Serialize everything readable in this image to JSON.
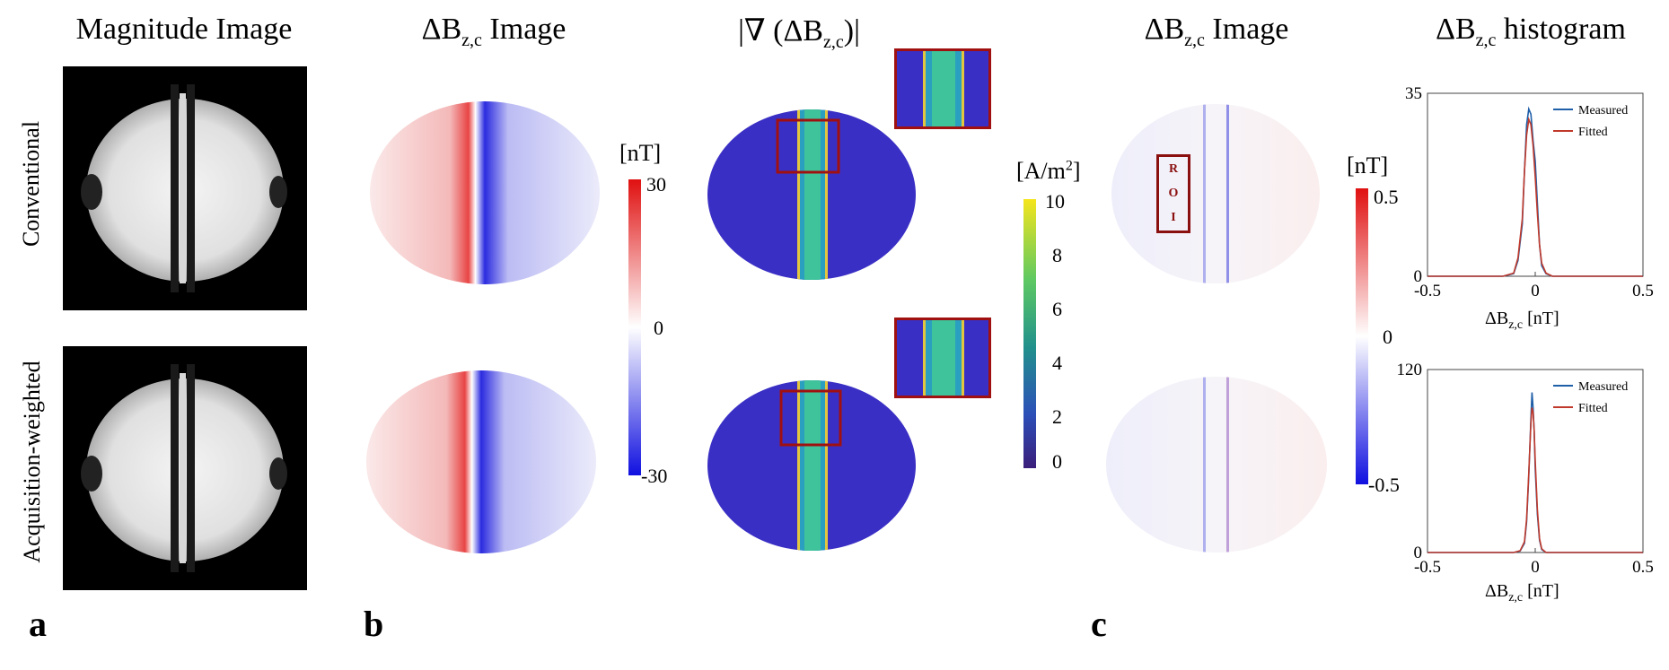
{
  "titles": {
    "magnitude": "Magnitude Image",
    "dbz1_prefix": "ΔB",
    "dbz1_sub": "z,c",
    "dbz1_suffix": " Image",
    "grad_prefix": "|∇ (ΔB",
    "grad_sub": "z,c",
    "grad_suffix": ")|",
    "dbz2_prefix": "ΔB",
    "dbz2_sub": "z,c",
    "dbz2_suffix": " Image",
    "hist_prefix": "ΔB",
    "hist_sub": "z,c",
    "hist_suffix": "  histogram"
  },
  "row_labels": [
    "Conventional",
    "Acquisition-weighted"
  ],
  "panel_letters": [
    "a",
    "b",
    "c"
  ],
  "colorbar_b": {
    "unit": "[nT]",
    "ticks": [
      "30",
      "0",
      "-30"
    ]
  },
  "colorbar_grad": {
    "unit_prefix": "[A/m",
    "unit_sup": "2",
    "unit_suffix": "]",
    "ticks": [
      "10",
      "8",
      "6",
      "4",
      "2",
      "0"
    ]
  },
  "colorbar_c": {
    "unit": "[nT]",
    "ticks": [
      "0.5",
      "0",
      "-0.5"
    ]
  },
  "roi_letters": [
    "R",
    "O",
    "I"
  ],
  "chart_data": [
    {
      "type": "line",
      "xlabel_prefix": "ΔB",
      "xlabel_sub": "z,c",
      "xlabel_suffix": " [nT]",
      "xlim": [
        -0.5,
        0.5
      ],
      "ylim": [
        0,
        35
      ],
      "xticks": [
        "-0.5",
        "0",
        "0.5"
      ],
      "yticks": [
        "35",
        "0"
      ],
      "series": [
        {
          "name": "Measured",
          "color": "#1f5fa8",
          "x": [
            -0.5,
            -0.15,
            -0.1,
            -0.08,
            -0.06,
            -0.05,
            -0.04,
            -0.03,
            -0.02,
            -0.01,
            0.0,
            0.01,
            0.02,
            0.03,
            0.05,
            0.08,
            0.5
          ],
          "y": [
            0,
            0,
            0.5,
            3,
            10,
            20,
            29,
            32,
            31,
            26,
            22,
            14,
            6,
            2,
            0.5,
            0,
            0
          ]
        },
        {
          "name": "Fitted",
          "color": "#c0392b",
          "x": [
            -0.5,
            -0.15,
            -0.1,
            -0.08,
            -0.06,
            -0.05,
            -0.04,
            -0.03,
            -0.02,
            -0.01,
            0.0,
            0.01,
            0.02,
            0.03,
            0.05,
            0.08,
            0.5
          ],
          "y": [
            0,
            0,
            0.6,
            3.5,
            11,
            20,
            27,
            30,
            29,
            25,
            19,
            12,
            6,
            2.5,
            0.6,
            0,
            0
          ]
        }
      ]
    },
    {
      "type": "line",
      "xlabel_prefix": "ΔB",
      "xlabel_sub": "z,c",
      "xlabel_suffix": " [nT]",
      "xlim": [
        -0.5,
        0.5
      ],
      "ylim": [
        0,
        120
      ],
      "xticks": [
        "-0.5",
        "0",
        "0.5"
      ],
      "yticks": [
        "120",
        "0"
      ],
      "series": [
        {
          "name": "Measured",
          "color": "#1f5fa8",
          "x": [
            -0.5,
            -0.1,
            -0.07,
            -0.05,
            -0.04,
            -0.03,
            -0.02,
            -0.015,
            -0.01,
            -0.005,
            0.0,
            0.01,
            0.02,
            0.03,
            0.05,
            0.5
          ],
          "y": [
            0,
            0,
            1,
            6,
            20,
            50,
            88,
            105,
            95,
            80,
            55,
            25,
            8,
            2,
            0,
            0
          ]
        },
        {
          "name": "Fitted",
          "color": "#c0392b",
          "x": [
            -0.5,
            -0.1,
            -0.07,
            -0.05,
            -0.04,
            -0.03,
            -0.02,
            -0.015,
            -0.01,
            -0.005,
            0.0,
            0.01,
            0.02,
            0.03,
            0.05,
            0.5
          ],
          "y": [
            0,
            0,
            1.2,
            7,
            22,
            52,
            85,
            95,
            92,
            80,
            60,
            28,
            9,
            2.5,
            0,
            0
          ]
        }
      ]
    }
  ]
}
